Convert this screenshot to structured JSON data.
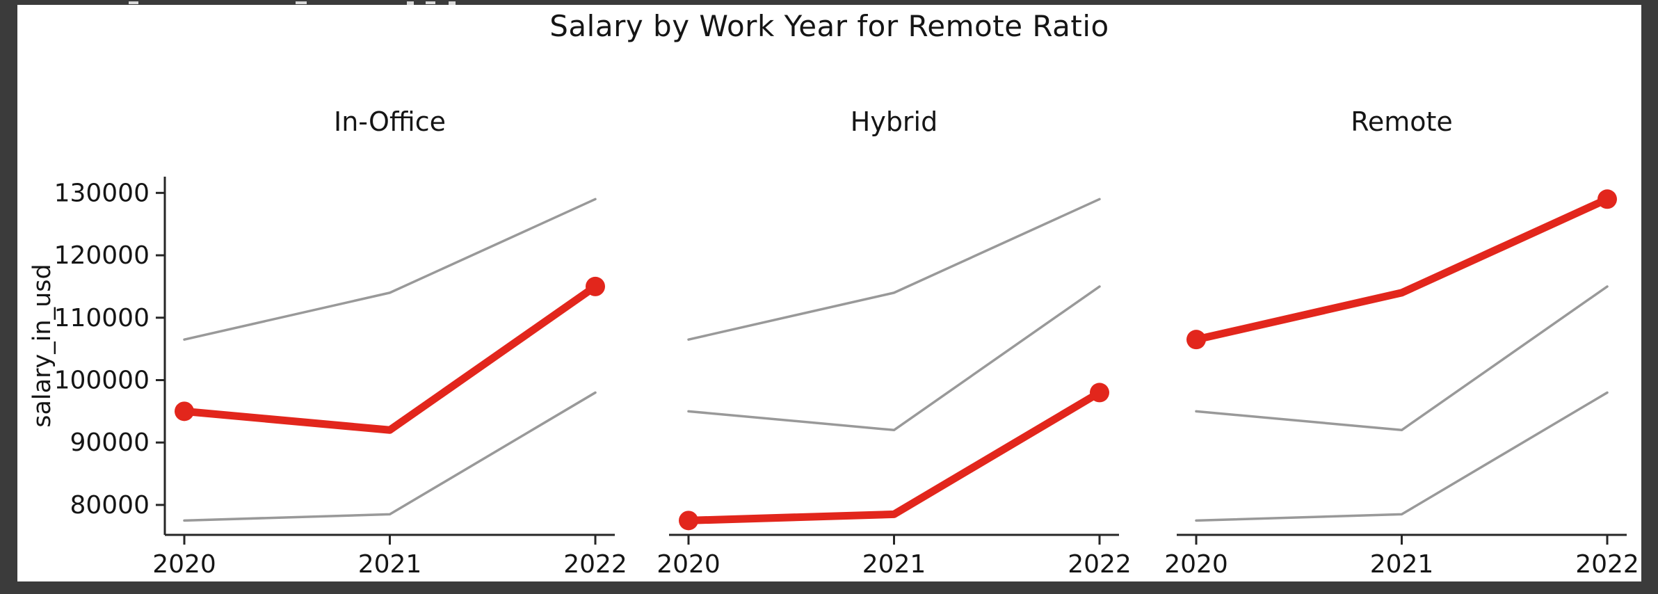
{
  "frame": {
    "background_color": "#3b3b3b",
    "figure_background": "#ffffff",
    "clipped_top_row_note": "bottom sliver of a cropped text line above the figure"
  },
  "figure": {
    "title": "Salary by Work Year for Remote Ratio",
    "ylabel": "salary_in_usd"
  },
  "chart_data": {
    "type": "line",
    "title": "Salary by Work Year for Remote Ratio",
    "ylabel": "salary_in_usd",
    "xlabel": "",
    "x": [
      2020,
      2021,
      2022
    ],
    "x_ticklabels": [
      "2020",
      "2021",
      "2022"
    ],
    "y_ticks": [
      80000,
      90000,
      100000,
      110000,
      120000,
      130000
    ],
    "y_ticklabels": [
      "80000",
      "90000",
      "100000",
      "110000",
      "120000",
      "130000"
    ],
    "ylim": [
      75200,
      132600
    ],
    "grid": false,
    "legend_position": "none",
    "panels": [
      {
        "title": "In-Office",
        "highlight_series": "In-Office"
      },
      {
        "title": "Hybrid",
        "highlight_series": "Hybrid"
      },
      {
        "title": "Remote",
        "highlight_series": "Remote"
      }
    ],
    "series": [
      {
        "name": "In-Office",
        "values": [
          95000,
          92000,
          115000
        ]
      },
      {
        "name": "Hybrid",
        "values": [
          77500,
          78500,
          98000
        ]
      },
      {
        "name": "Remote",
        "values": [
          106500,
          114000,
          129000
        ]
      }
    ],
    "marker_x_indices": [
      0,
      2
    ],
    "colors": {
      "highlight_line": "#e2261c",
      "other_line": "#999999",
      "axis": "#262626",
      "text": "#151515"
    }
  }
}
